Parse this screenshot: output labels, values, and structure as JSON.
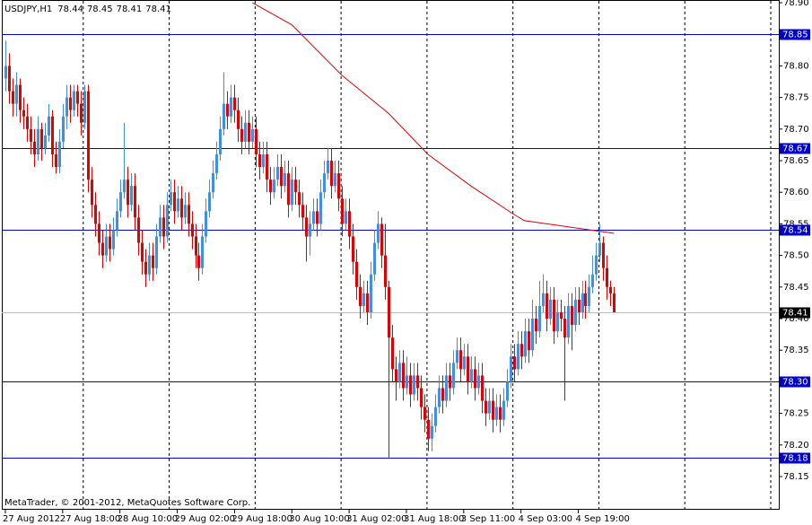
{
  "chart_data": {
    "type": "candlestick",
    "symbol": "USDJPY,H1",
    "ohlc": [
      78.44,
      78.45,
      78.41,
      78.41
    ],
    "footer": "MetaTrader, © 2001-2012, MetaQuotes Software Corp.",
    "up_color": "#3f8fe6",
    "down_color": "#e00000",
    "ylim": [
      78.0975,
      78.9043
    ],
    "yticks": [
      {
        "value": 78.9,
        "label": "78.90"
      },
      78.85,
      {
        "value": 78.8,
        "label": "78.80"
      },
      78.75,
      {
        "value": 78.7,
        "label": "78.70"
      },
      78.65,
      {
        "value": 78.6,
        "label": "78.60"
      },
      78.55,
      {
        "value": 78.5,
        "label": "78.50"
      },
      78.45,
      {
        "value": 78.4,
        "label": "78.40"
      },
      78.35,
      {
        "value": 78.3,
        "label": "78.30"
      },
      78.25,
      {
        "value": 78.2,
        "label": "78.20"
      },
      78.15
    ],
    "xlim": [
      -1,
      216
    ],
    "xticks": [
      {
        "value": 0,
        "label": "27 Aug 2012"
      },
      {
        "value": 16,
        "label": "27 Aug 18:00"
      },
      {
        "value": 32,
        "label": "28 Aug 10:00"
      },
      {
        "value": 48,
        "label": "29 Aug 02:00"
      },
      {
        "value": 64,
        "label": "29 Aug 18:00"
      },
      {
        "value": 80,
        "label": "30 Aug 10:00"
      },
      {
        "value": 96,
        "label": "31 Aug 02:00"
      },
      {
        "value": 112,
        "label": "31 Aug 18:00"
      },
      {
        "value": 128,
        "label": "3 Sep 11:00"
      },
      {
        "value": 144,
        "label": "4 Sep 03:00"
      },
      {
        "value": 160,
        "label": "4 Sep 19:00"
      }
    ],
    "levels": [
      78.85,
      78.67,
      78.54,
      {
        "value": 78.3,
        "label": "78.30"
      },
      78.18
    ],
    "level_color": "#0000cc",
    "price_line": 78.41,
    "ma": {
      "color": "#e00000",
      "x": [
        69,
        80,
        94,
        107,
        118,
        130,
        142,
        145,
        170
      ],
      "values": [
        78.9,
        78.865,
        78.785,
        78.725,
        78.66,
        78.61,
        78.565,
        78.555,
        78.535
      ]
    },
    "candles": [
      [
        78.78,
        78.84,
        78.76,
        78.8
      ],
      [
        78.8,
        78.82,
        78.74,
        78.76
      ],
      [
        78.76,
        78.78,
        78.72,
        78.74
      ],
      [
        78.74,
        78.79,
        78.72,
        78.77
      ],
      [
        78.77,
        78.78,
        78.71,
        78.73
      ],
      [
        78.73,
        78.75,
        78.7,
        78.72
      ],
      [
        78.72,
        78.74,
        78.68,
        78.7
      ],
      [
        78.7,
        78.72,
        78.66,
        78.68
      ],
      [
        78.68,
        78.7,
        78.64,
        78.66
      ],
      [
        78.66,
        78.72,
        78.65,
        78.7
      ],
      [
        78.7,
        78.71,
        78.65,
        78.67
      ],
      [
        78.67,
        78.71,
        78.66,
        78.69
      ],
      [
        78.69,
        78.74,
        78.68,
        78.72
      ],
      [
        78.72,
        78.73,
        78.64,
        78.66
      ],
      [
        78.66,
        78.68,
        78.63,
        78.64
      ],
      [
        78.64,
        78.7,
        78.63,
        78.68
      ],
      [
        78.68,
        78.74,
        78.67,
        78.72
      ],
      [
        78.72,
        78.77,
        78.7,
        78.75
      ],
      [
        78.75,
        78.77,
        78.71,
        78.73
      ],
      [
        78.73,
        78.77,
        78.72,
        78.76
      ],
      [
        78.76,
        78.77,
        78.72,
        78.74
      ],
      [
        78.74,
        78.76,
        78.69,
        78.71
      ],
      [
        78.71,
        78.77,
        78.7,
        78.76
      ],
      [
        78.76,
        78.77,
        78.6,
        78.62
      ],
      [
        78.62,
        78.64,
        78.56,
        78.58
      ],
      [
        78.58,
        78.6,
        78.53,
        78.55
      ],
      [
        78.55,
        78.57,
        78.5,
        78.52
      ],
      [
        78.52,
        78.54,
        78.48,
        78.5
      ],
      [
        78.5,
        78.55,
        78.49,
        78.53
      ],
      [
        78.53,
        78.55,
        78.49,
        78.51
      ],
      [
        78.51,
        78.56,
        78.5,
        78.54
      ],
      [
        78.54,
        78.59,
        78.53,
        78.57
      ],
      [
        78.57,
        78.62,
        78.56,
        78.6
      ],
      [
        78.6,
        78.71,
        78.59,
        78.62
      ],
      [
        78.62,
        78.64,
        78.56,
        78.58
      ],
      [
        78.58,
        78.63,
        78.57,
        78.61
      ],
      [
        78.61,
        78.63,
        78.54,
        78.56
      ],
      [
        78.56,
        78.58,
        78.5,
        78.52
      ],
      [
        78.52,
        78.54,
        78.47,
        78.49
      ],
      [
        78.49,
        78.51,
        78.45,
        78.47
      ],
      [
        78.47,
        78.52,
        78.46,
        78.5
      ],
      [
        78.5,
        78.52,
        78.46,
        78.48
      ],
      [
        78.48,
        78.55,
        78.47,
        78.53
      ],
      [
        78.53,
        78.58,
        78.52,
        78.56
      ],
      [
        78.56,
        78.58,
        78.51,
        78.53
      ],
      [
        78.53,
        78.6,
        78.52,
        78.58
      ],
      [
        78.58,
        78.62,
        78.57,
        78.6
      ],
      [
        78.6,
        78.62,
        78.55,
        78.57
      ],
      [
        78.57,
        78.61,
        78.56,
        78.59
      ],
      [
        78.59,
        78.61,
        78.54,
        78.56
      ],
      [
        78.56,
        78.6,
        78.55,
        78.58
      ],
      [
        78.58,
        78.6,
        78.53,
        78.55
      ],
      [
        78.55,
        78.57,
        78.51,
        78.53
      ],
      [
        78.53,
        78.55,
        78.48,
        78.5
      ],
      [
        78.5,
        78.52,
        78.46,
        78.48
      ],
      [
        78.48,
        78.55,
        78.47,
        78.53
      ],
      [
        78.53,
        78.59,
        78.52,
        78.57
      ],
      [
        78.57,
        78.62,
        78.56,
        78.6
      ],
      [
        78.6,
        78.65,
        78.59,
        78.63
      ],
      [
        78.63,
        78.68,
        78.62,
        78.66
      ],
      [
        78.66,
        78.72,
        78.65,
        78.7
      ],
      [
        78.7,
        78.79,
        78.69,
        78.74
      ],
      [
        78.74,
        78.76,
        78.7,
        78.72
      ],
      [
        78.72,
        78.77,
        78.71,
        78.75
      ],
      [
        78.75,
        78.77,
        78.71,
        78.73
      ],
      [
        78.73,
        78.75,
        78.68,
        78.7
      ],
      [
        78.7,
        78.72,
        78.66,
        78.68
      ],
      [
        78.68,
        78.73,
        78.67,
        78.71
      ],
      [
        78.71,
        78.73,
        78.66,
        78.68
      ],
      [
        78.68,
        78.72,
        78.67,
        78.7
      ],
      [
        78.7,
        78.72,
        78.64,
        78.66
      ],
      [
        78.66,
        78.68,
        78.62,
        78.64
      ],
      [
        78.64,
        78.68,
        78.63,
        78.66
      ],
      [
        78.66,
        78.68,
        78.6,
        78.62
      ],
      [
        78.62,
        78.64,
        78.58,
        78.6
      ],
      [
        78.6,
        78.64,
        78.59,
        78.62
      ],
      [
        78.62,
        78.66,
        78.61,
        78.64
      ],
      [
        78.64,
        78.66,
        78.59,
        78.61
      ],
      [
        78.61,
        78.65,
        78.6,
        78.63
      ],
      [
        78.63,
        78.65,
        78.56,
        78.58
      ],
      [
        78.58,
        78.64,
        78.57,
        78.62
      ],
      [
        78.62,
        78.64,
        78.58,
        78.6
      ],
      [
        78.6,
        78.62,
        78.56,
        78.58
      ],
      [
        78.58,
        78.6,
        78.54,
        78.56
      ],
      [
        78.56,
        78.58,
        78.49,
        78.53
      ],
      [
        78.53,
        78.57,
        78.5,
        78.55
      ],
      [
        78.55,
        78.59,
        78.54,
        78.57
      ],
      [
        78.57,
        78.59,
        78.53,
        78.55
      ],
      [
        78.55,
        78.62,
        78.54,
        78.6
      ],
      [
        78.6,
        78.65,
        78.59,
        78.63
      ],
      [
        78.63,
        78.67,
        78.62,
        78.65
      ],
      [
        78.65,
        78.67,
        78.59,
        78.61
      ],
      [
        78.61,
        78.65,
        78.6,
        78.63
      ],
      [
        78.63,
        78.65,
        78.57,
        78.59
      ],
      [
        78.59,
        78.61,
        78.53,
        78.55
      ],
      [
        78.55,
        78.59,
        78.54,
        78.57
      ],
      [
        78.57,
        78.59,
        78.51,
        78.53
      ],
      [
        78.53,
        78.55,
        78.47,
        78.49
      ],
      [
        78.49,
        78.51,
        78.43,
        78.45
      ],
      [
        78.45,
        78.47,
        78.4,
        78.42
      ],
      [
        78.42,
        78.46,
        78.41,
        78.44
      ],
      [
        78.44,
        78.46,
        78.39,
        78.41
      ],
      [
        78.41,
        78.49,
        78.4,
        78.47
      ],
      [
        78.47,
        78.54,
        78.46,
        78.52
      ],
      [
        78.52,
        78.57,
        78.51,
        78.55
      ],
      [
        78.55,
        78.56,
        78.48,
        78.5
      ],
      [
        78.5,
        78.55,
        78.43,
        78.45
      ],
      [
        78.45,
        78.46,
        78.18,
        78.37
      ],
      [
        78.37,
        78.39,
        78.3,
        78.32
      ],
      [
        78.32,
        78.34,
        78.27,
        78.3
      ],
      [
        78.3,
        78.35,
        78.29,
        78.33
      ],
      [
        78.33,
        78.35,
        78.27,
        78.29
      ],
      [
        78.29,
        78.34,
        78.28,
        78.31
      ],
      [
        78.31,
        78.33,
        78.26,
        78.28
      ],
      [
        78.28,
        78.33,
        78.27,
        78.31
      ],
      [
        78.31,
        78.33,
        78.27,
        78.29
      ],
      [
        78.29,
        78.31,
        78.24,
        78.26
      ],
      [
        78.26,
        78.28,
        78.22,
        78.24
      ],
      [
        78.24,
        78.26,
        78.19,
        78.21
      ],
      [
        78.21,
        78.25,
        78.19,
        78.23
      ],
      [
        78.23,
        78.28,
        78.22,
        78.26
      ],
      [
        78.26,
        78.31,
        78.25,
        78.29
      ],
      [
        78.29,
        78.31,
        78.25,
        78.27
      ],
      [
        78.27,
        78.33,
        78.26,
        78.31
      ],
      [
        78.31,
        78.33,
        78.27,
        78.29
      ],
      [
        78.29,
        78.35,
        78.28,
        78.33
      ],
      [
        78.33,
        78.37,
        78.32,
        78.35
      ],
      [
        78.35,
        78.37,
        78.3,
        78.32
      ],
      [
        78.32,
        78.36,
        78.31,
        78.34
      ],
      [
        78.34,
        78.36,
        78.28,
        78.3
      ],
      [
        78.3,
        78.34,
        78.29,
        78.32
      ],
      [
        78.32,
        78.34,
        78.27,
        78.29
      ],
      [
        78.29,
        78.33,
        78.28,
        78.31
      ],
      [
        78.31,
        78.33,
        78.25,
        78.27
      ],
      [
        78.27,
        78.29,
        78.23,
        78.25
      ],
      [
        78.25,
        78.29,
        78.24,
        78.27
      ],
      [
        78.27,
        78.29,
        78.22,
        78.24
      ],
      [
        78.24,
        78.28,
        78.23,
        78.26
      ],
      [
        78.26,
        78.28,
        78.22,
        78.24
      ],
      [
        78.24,
        78.29,
        78.23,
        78.27
      ],
      [
        78.27,
        78.32,
        78.26,
        78.3
      ],
      [
        78.3,
        78.36,
        78.29,
        78.34
      ],
      [
        78.34,
        78.36,
        78.3,
        78.32
      ],
      [
        78.32,
        78.38,
        78.31,
        78.36
      ],
      [
        78.36,
        78.38,
        78.32,
        78.34
      ],
      [
        78.34,
        78.4,
        78.33,
        78.38
      ],
      [
        78.38,
        78.4,
        78.33,
        78.35
      ],
      [
        78.35,
        78.43,
        78.34,
        78.4
      ],
      [
        78.4,
        78.42,
        78.36,
        78.38
      ],
      [
        78.38,
        78.46,
        78.37,
        78.42
      ],
      [
        78.42,
        78.47,
        78.41,
        78.44
      ],
      [
        78.44,
        78.46,
        78.38,
        78.4
      ],
      [
        78.4,
        78.45,
        78.39,
        78.43
      ],
      [
        78.43,
        78.45,
        78.36,
        78.38
      ],
      [
        78.38,
        78.43,
        78.37,
        78.41
      ],
      [
        78.41,
        78.43,
        78.38,
        78.4
      ],
      [
        78.4,
        78.42,
        78.27,
        78.37
      ],
      [
        78.37,
        78.44,
        78.36,
        78.42
      ],
      [
        78.42,
        78.44,
        78.35,
        78.39
      ],
      [
        78.39,
        78.45,
        78.38,
        78.43
      ],
      [
        78.43,
        78.45,
        78.39,
        78.41
      ],
      [
        78.41,
        78.46,
        78.4,
        78.44
      ],
      [
        78.44,
        78.46,
        78.4,
        78.42
      ],
      [
        78.42,
        78.47,
        78.41,
        78.45
      ],
      [
        78.45,
        78.5,
        78.44,
        78.47
      ],
      [
        78.47,
        78.52,
        78.46,
        78.5
      ],
      [
        78.5,
        78.55,
        78.49,
        78.52
      ],
      [
        78.52,
        78.53,
        78.46,
        78.48
      ],
      [
        78.48,
        78.5,
        78.43,
        78.45
      ],
      [
        78.45,
        78.46,
        78.42,
        78.44
      ],
      [
        78.44,
        78.45,
        78.41,
        78.41
      ]
    ]
  }
}
